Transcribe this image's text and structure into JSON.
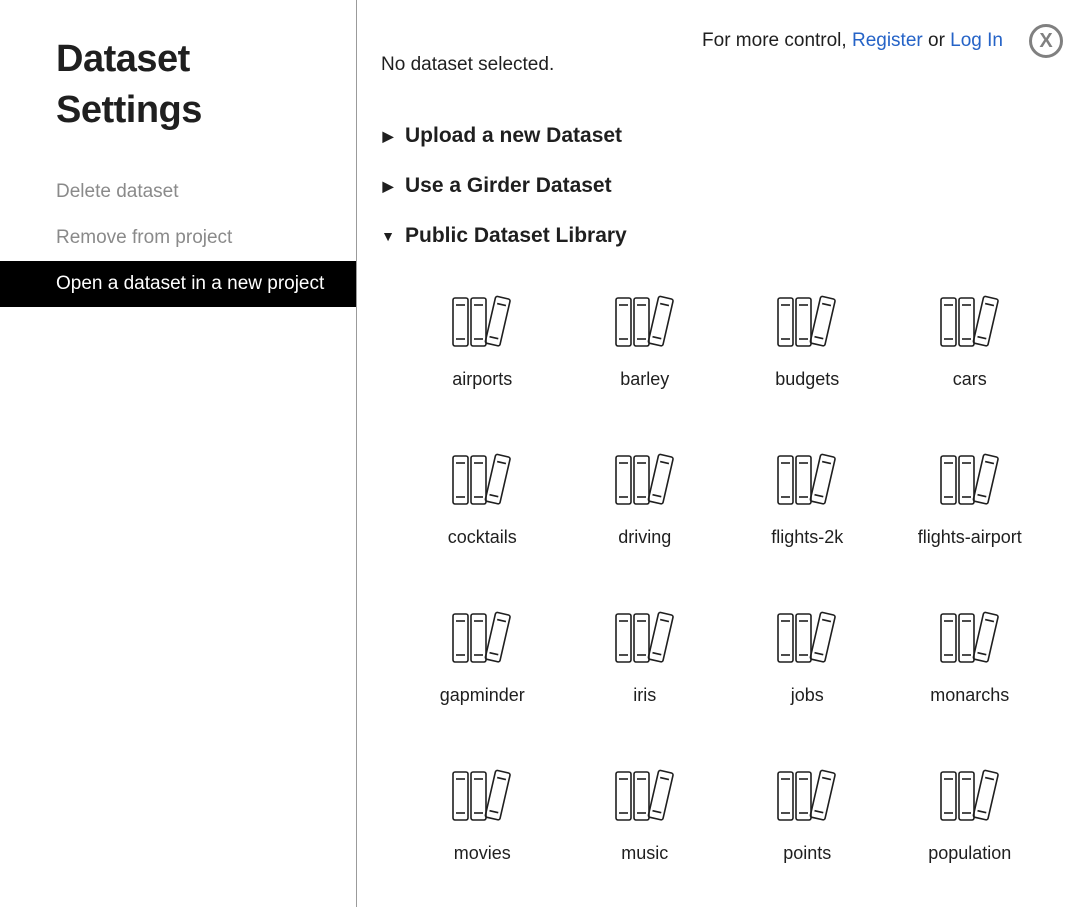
{
  "top": {
    "prompt_prefix": "For more control, ",
    "register": "Register",
    "connector": " or ",
    "login": "Log In",
    "close_label": "X"
  },
  "sidebar": {
    "title": "Dataset Settings",
    "items": [
      {
        "label": "Delete dataset",
        "active": false
      },
      {
        "label": "Remove from project",
        "active": false
      },
      {
        "label": "Open a dataset in a new project",
        "active": true
      }
    ]
  },
  "main": {
    "status": "No dataset selected.",
    "sections": [
      {
        "label": "Upload a new Dataset",
        "expanded": false
      },
      {
        "label": "Use a Girder Dataset",
        "expanded": false
      },
      {
        "label": "Public Dataset Library",
        "expanded": true
      }
    ],
    "datasets": [
      {
        "name": "airports"
      },
      {
        "name": "barley"
      },
      {
        "name": "budgets"
      },
      {
        "name": "cars"
      },
      {
        "name": "cocktails"
      },
      {
        "name": "driving"
      },
      {
        "name": "flights-2k"
      },
      {
        "name": "flights-airport"
      },
      {
        "name": "gapminder"
      },
      {
        "name": "iris"
      },
      {
        "name": "jobs"
      },
      {
        "name": "monarchs"
      },
      {
        "name": "movies"
      },
      {
        "name": "music"
      },
      {
        "name": "points"
      },
      {
        "name": "population"
      }
    ]
  },
  "style": {
    "link_color": "#2563c7",
    "active_bg": "#000000",
    "active_fg": "#ffffff",
    "inactive_fg": "#8a8a8a",
    "border_color": "#9b9b9b",
    "icon_stroke": "#1f1f1f",
    "close_color": "#808080",
    "background": "#ffffff"
  }
}
